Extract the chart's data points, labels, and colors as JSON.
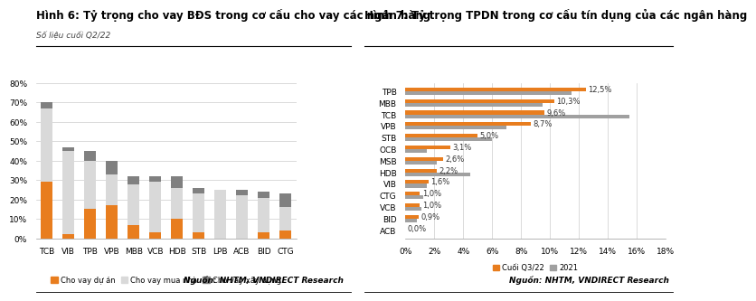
{
  "fig6": {
    "title": "Hình 6: Tỷ trọng cho vay BĐS trong cơ cấu cho vay các ngân hàng",
    "subtitle": "Số liệu cuối Q2/22",
    "categories": [
      "TCB",
      "VIB",
      "TPB",
      "VPB",
      "MBB",
      "VCB",
      "HDB",
      "STB",
      "LPB",
      "ACB",
      "BID",
      "CTG"
    ],
    "du_an": [
      29,
      2,
      15,
      17,
      7,
      3,
      10,
      3,
      0,
      0,
      3,
      4
    ],
    "mua_nha": [
      38,
      43,
      25,
      16,
      21,
      26,
      16,
      20,
      25,
      22,
      18,
      12
    ],
    "xay_dung": [
      3,
      2,
      5,
      7,
      4,
      3,
      6,
      3,
      0,
      3,
      3,
      7
    ],
    "ylim": [
      0,
      80
    ],
    "yticks": [
      0,
      10,
      20,
      30,
      40,
      50,
      60,
      70,
      80
    ],
    "color_du_an": "#E87D1E",
    "color_mua_nha": "#D9D9D9",
    "color_xay_dung": "#808080",
    "legend_labels": [
      "Cho vay dự án",
      "Cho vay mua nhà",
      "Cho vay xây dựng"
    ],
    "source": "Nguồn: NHTM, VNDIRECT Research"
  },
  "fig7": {
    "title": "Hình 7: Tỷ trọng TPDN trong cơ cấu tín dụng của các ngân hàng",
    "categories": [
      "TPB",
      "MBB",
      "TCB",
      "VPB",
      "STB",
      "OCB",
      "MSB",
      "HDB",
      "VIB",
      "CTG",
      "VCB",
      "BID",
      "ACB"
    ],
    "q3_22": [
      12.5,
      10.3,
      9.6,
      8.7,
      5.0,
      3.1,
      2.6,
      2.2,
      1.6,
      1.0,
      1.0,
      0.9,
      0.0
    ],
    "y2021": [
      11.5,
      9.5,
      15.5,
      7.0,
      6.0,
      1.5,
      2.2,
      4.5,
      1.5,
      1.2,
      1.1,
      0.8,
      0.0
    ],
    "xlim": [
      0,
      18
    ],
    "xticks": [
      0,
      2,
      4,
      6,
      8,
      10,
      12,
      14,
      16,
      18
    ],
    "color_q3_22": "#E87D1E",
    "color_2021": "#A0A0A0",
    "legend_labels": [
      "Cuối Q3/22",
      "2021"
    ],
    "labels": [
      "12,5%",
      "10,3%",
      "9,6%",
      "8,7%",
      "5,0%",
      "3,1%",
      "2,6%",
      "2,2%",
      "1,6%",
      "1,0%",
      "1,0%",
      "0,9%",
      "0,0%"
    ],
    "source": "Nguồn: NHTM, VNDIRECT Research"
  },
  "bg_color": "#FFFFFF",
  "title_fontsize": 8.5,
  "tick_fontsize": 6.5,
  "label_fontsize": 6.0
}
